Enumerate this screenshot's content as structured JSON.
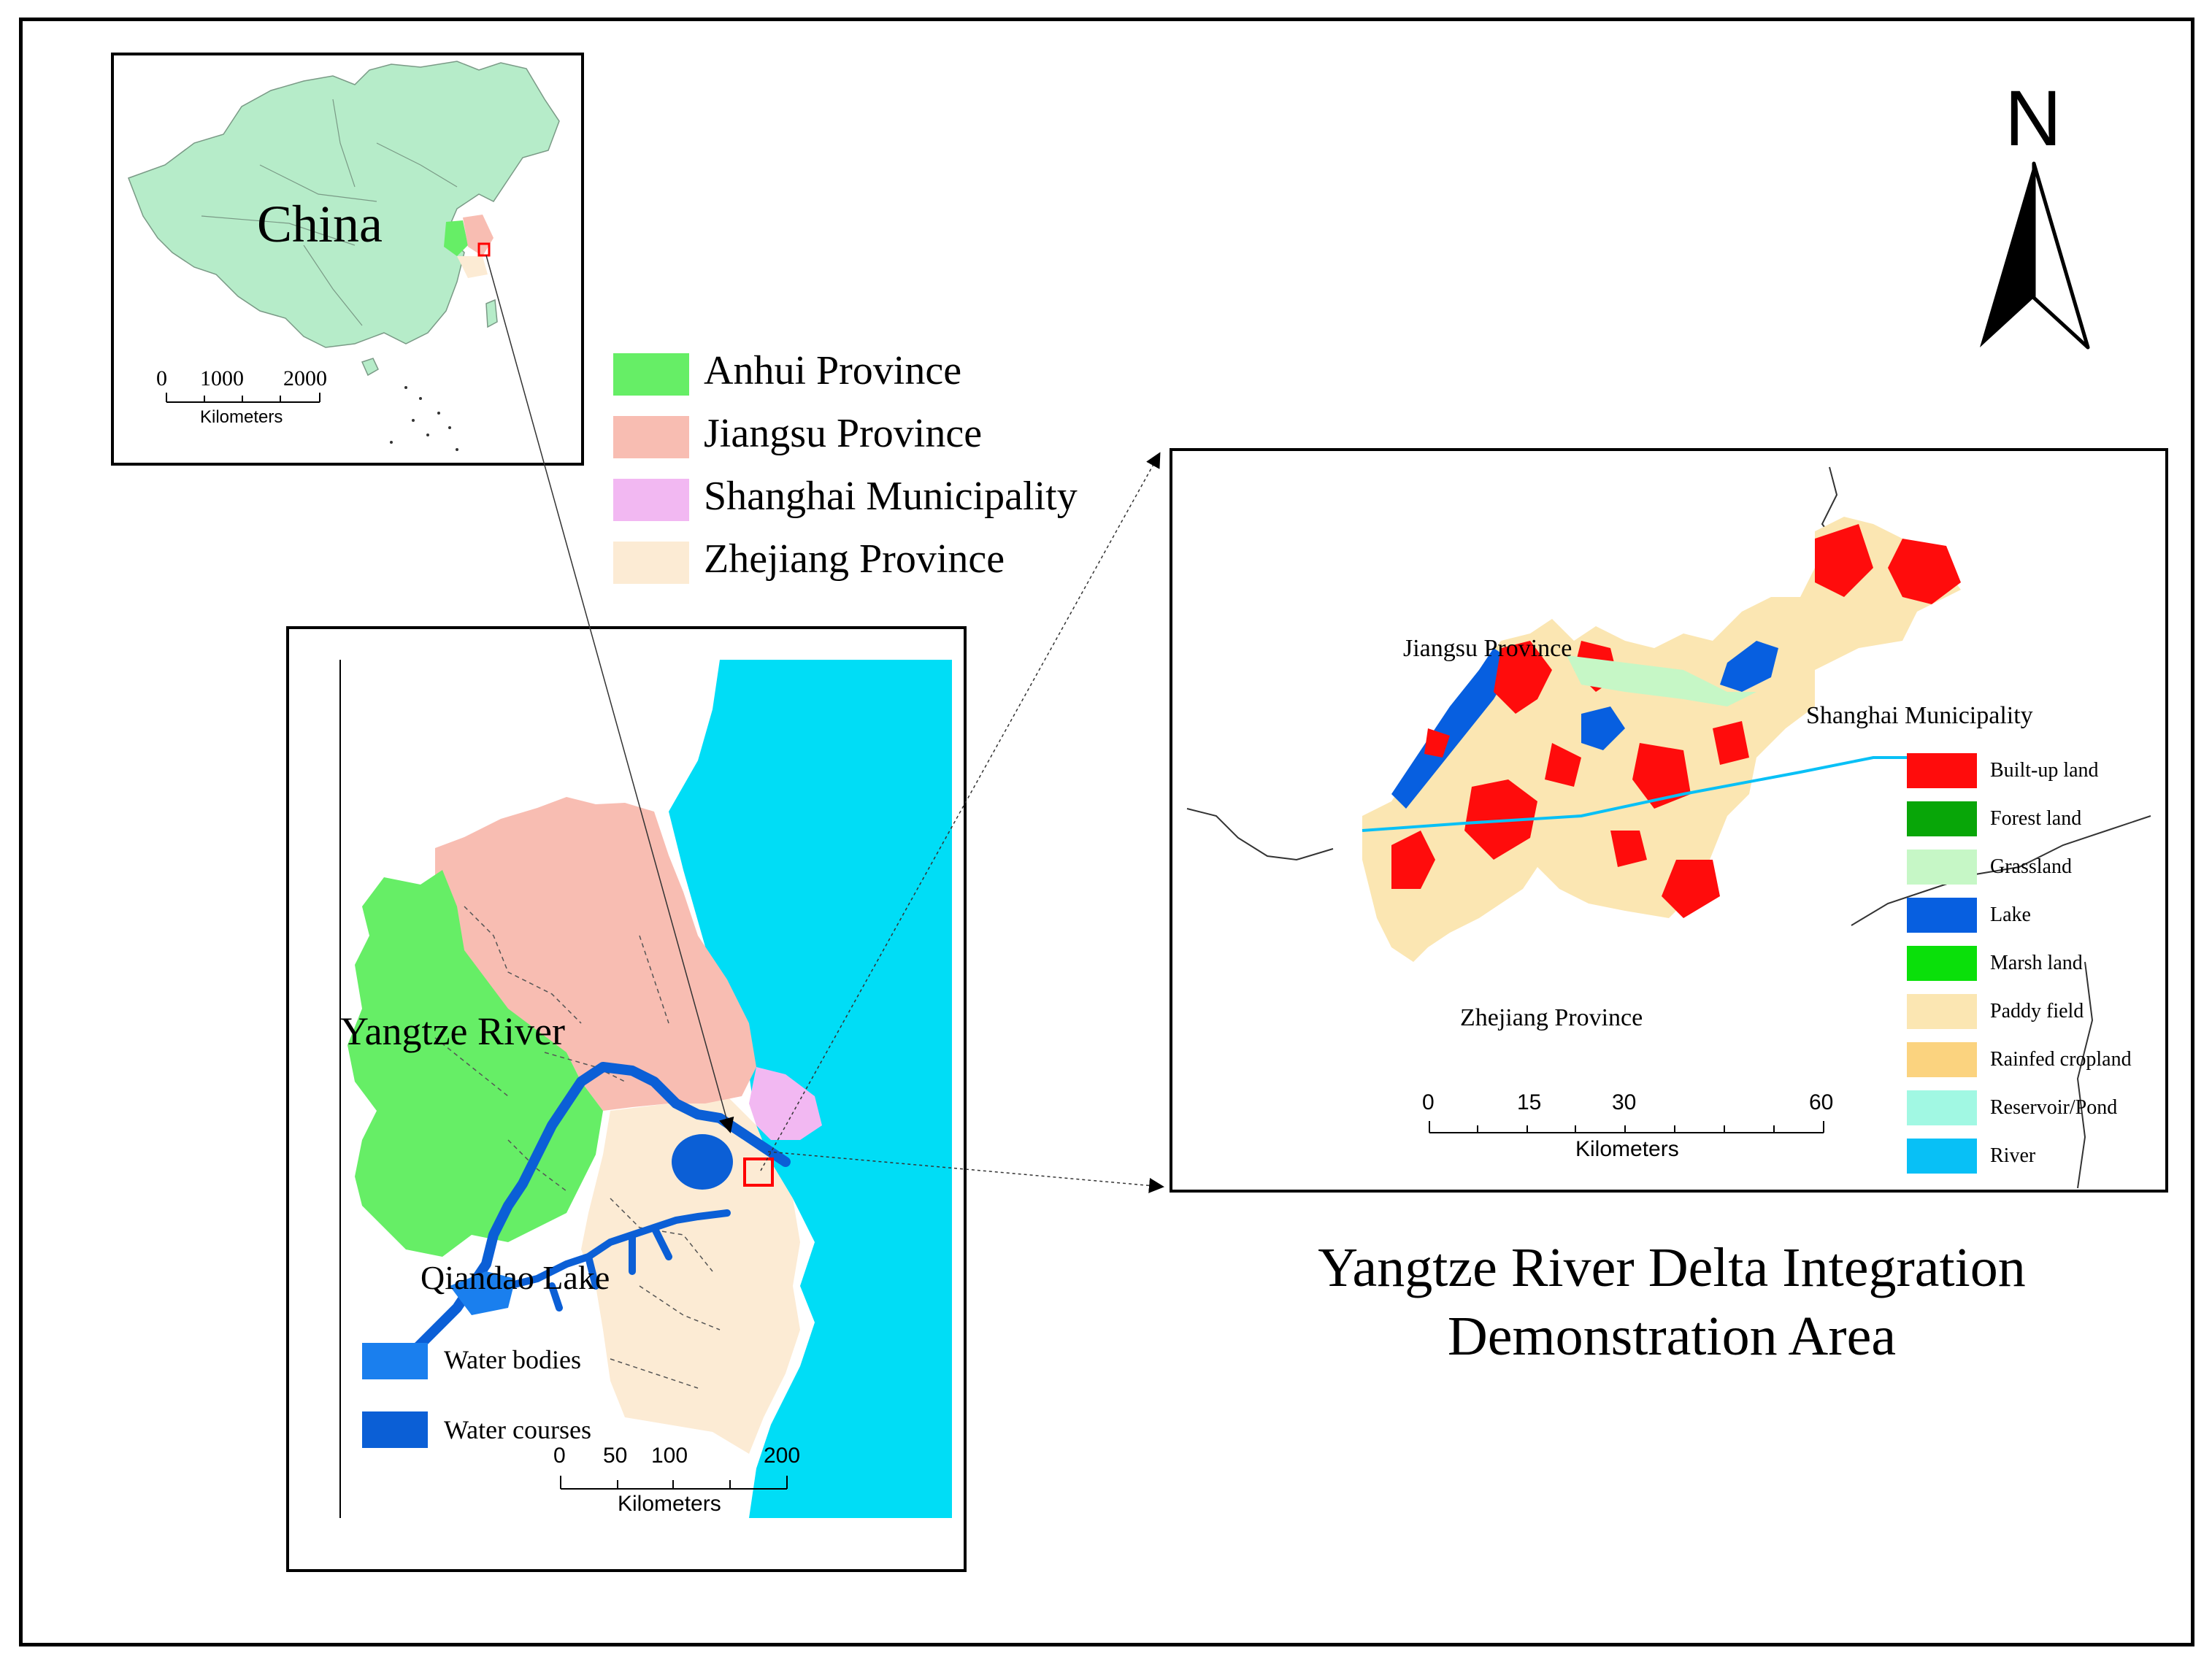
{
  "colors": {
    "anhui": "#66ee66",
    "jiangsu": "#f8bdb2",
    "shanghai": "#f2b8f2",
    "zhejiang": "#fcebd4",
    "china": "#b6ecc9",
    "sea": "#00ddf6",
    "water_bodies": "#1a7fee",
    "water_courses": "#0b5fd6",
    "builtup": "#ff0c0c",
    "forest": "#08a608",
    "grassland": "#c6f7c6",
    "lake": "#075fe0",
    "marsh": "#0ae00a",
    "paddy": "#fbe6b2",
    "rainfed": "#fbd37f",
    "reservoir": "#a1f8e3",
    "river": "#08c0f6",
    "locator_box": "#ff0000"
  },
  "inset_china": {
    "label": "China",
    "scale_ticks": [
      "0",
      "1000",
      "2000"
    ],
    "scale_unit": "Kilometers"
  },
  "province_legend": [
    {
      "label": "Anhui Province",
      "color_key": "anhui"
    },
    {
      "label": "Jiangsu Province",
      "color_key": "jiangsu"
    },
    {
      "label": "Shanghai Municipality",
      "color_key": "shanghai"
    },
    {
      "label": "Zhejiang Province",
      "color_key": "zhejiang"
    }
  ],
  "regional_map": {
    "labels": {
      "river": "Yangtze River",
      "lake": "Qiandao Lake"
    },
    "legend": [
      {
        "label": "Water bodies",
        "color_key": "water_bodies"
      },
      {
        "label": "Water courses",
        "color_key": "water_courses"
      }
    ],
    "scale_ticks": [
      "0",
      "50",
      "100",
      "200"
    ],
    "scale_unit": "Kilometers"
  },
  "detail_map": {
    "labels": {
      "jiangsu": "Jiangsu Province",
      "shanghai": "Shanghai Municipality",
      "zhejiang": "Zhejiang Province"
    },
    "legend": [
      {
        "label": "Built-up land",
        "color_key": "builtup"
      },
      {
        "label": "Forest land",
        "color_key": "forest"
      },
      {
        "label": "Grassland",
        "color_key": "grassland"
      },
      {
        "label": "Lake",
        "color_key": "lake"
      },
      {
        "label": "Marsh land",
        "color_key": "marsh"
      },
      {
        "label": "Paddy field",
        "color_key": "paddy"
      },
      {
        "label": "Rainfed cropland",
        "color_key": "rainfed"
      },
      {
        "label": "Reservoir/Pond",
        "color_key": "reservoir"
      },
      {
        "label": "River",
        "color_key": "river"
      }
    ],
    "scale_ticks": [
      "0",
      "15",
      "30",
      "60"
    ],
    "scale_unit": "Kilometers"
  },
  "north_arrow": {
    "label": "N"
  },
  "title": {
    "line1": "Yangtze River Delta Integration",
    "line2": "Demonstration Area"
  }
}
